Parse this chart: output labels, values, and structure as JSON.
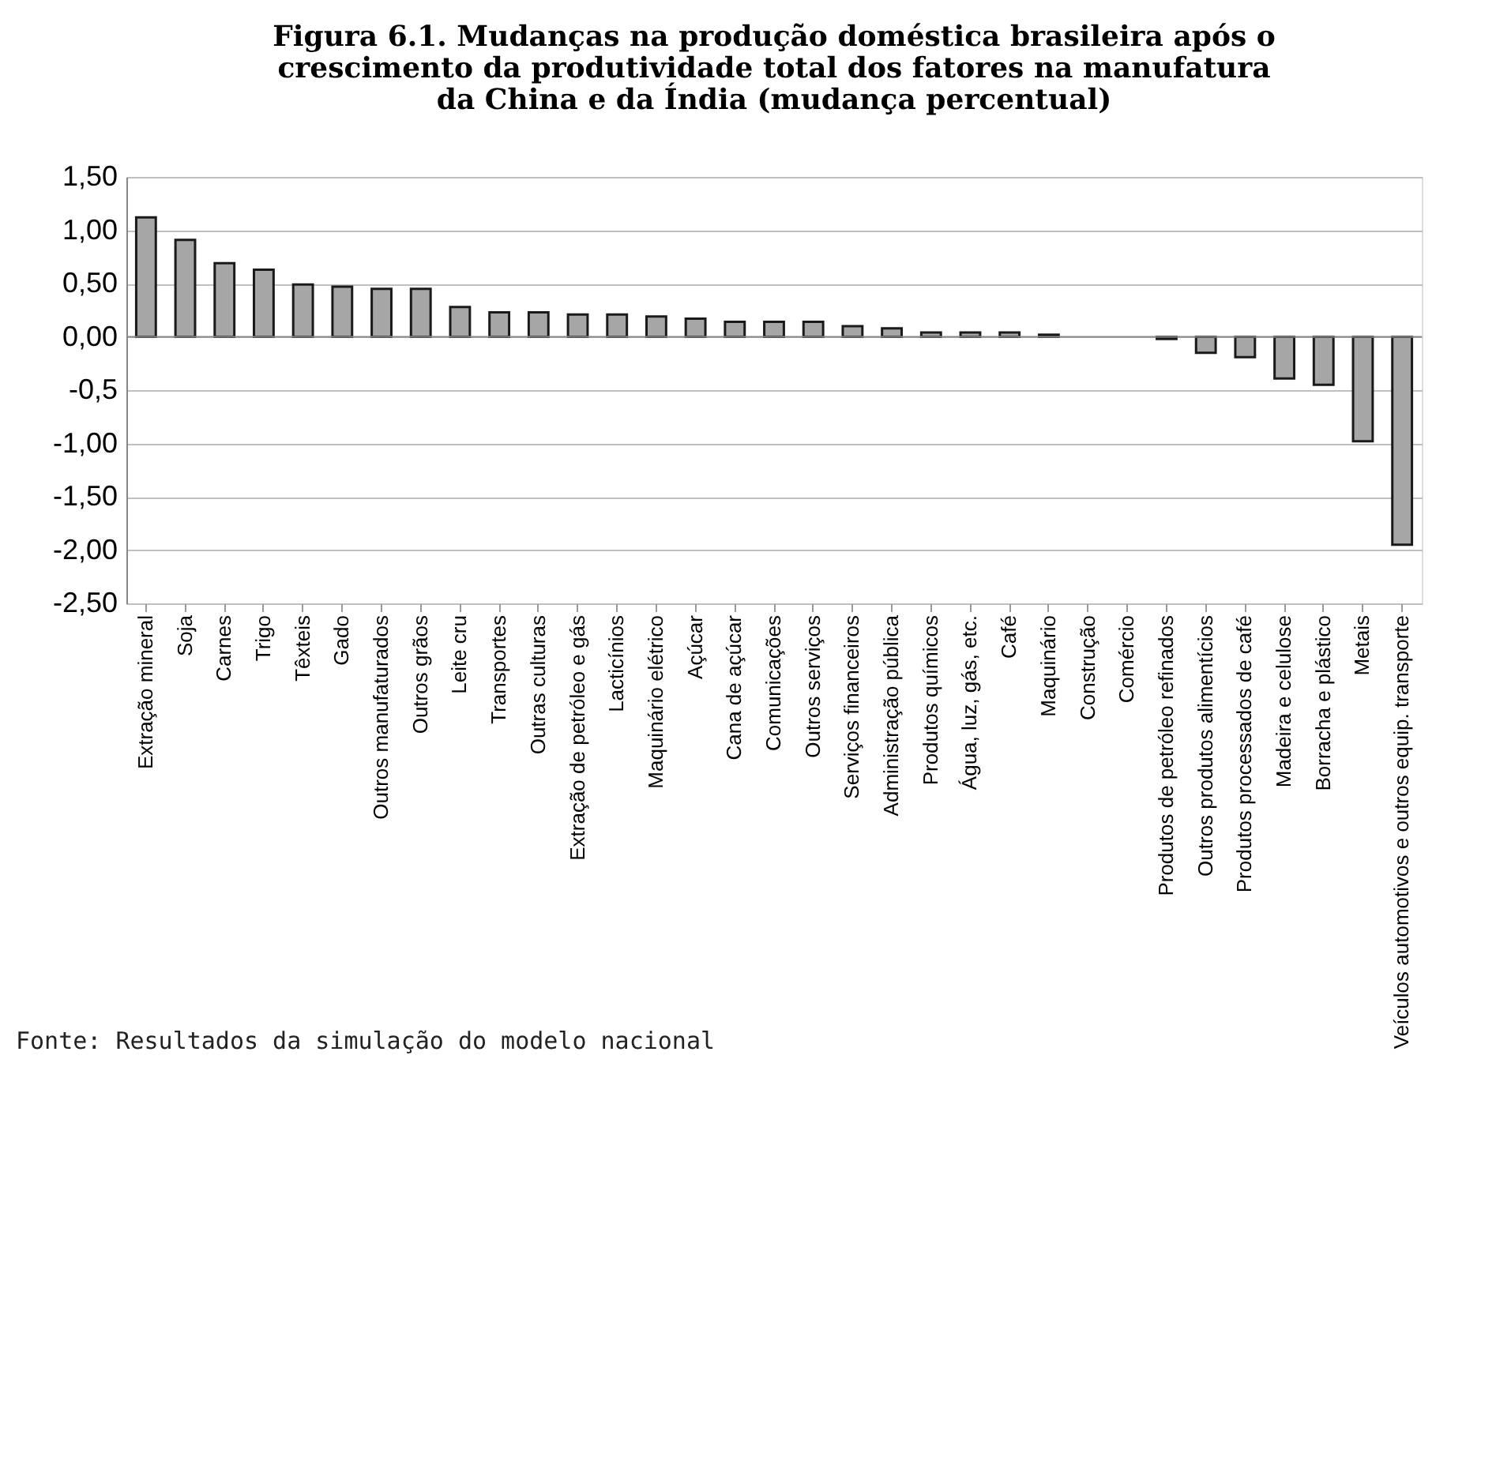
{
  "chart_data": {
    "type": "bar",
    "title": "Figura 6.1. Mudanças na produção doméstica brasileira após o crescimento da produtividade total dos fatores na manufatura da China e da Índia (mudança percentual)",
    "categories": [
      "Extração mineral",
      "Soja",
      "Carnes",
      "Trigo",
      "Têxteis",
      "Gado",
      "Outros manufaturados",
      "Outros grãos",
      "Leite cru",
      "Transportes",
      "Outras culturas",
      "Extração de petróleo e gás",
      "Lacticínios",
      "Maquinário elétrico",
      "Açúcar",
      "Cana de açúcar",
      "Comunicações",
      "Outros serviços",
      "Serviços financeiros",
      "Administração pública",
      "Produtos químicos",
      "Água, luz, gás, etc.",
      "Café",
      "Maquinário",
      "Construção",
      "Comércio",
      "Produtos de petróleo refinados",
      "Outros produtos alimentícios",
      "Produtos processados de café",
      "Madeira e celulose",
      "Borracha e plástico",
      "Metais",
      "Veículos automotivos e outros equip. transporte"
    ],
    "values": [
      1.12,
      0.91,
      0.69,
      0.63,
      0.49,
      0.47,
      0.45,
      0.45,
      0.28,
      0.23,
      0.23,
      0.21,
      0.21,
      0.19,
      0.17,
      0.14,
      0.14,
      0.14,
      0.1,
      0.08,
      0.04,
      0.04,
      0.04,
      0.02,
      0,
      0,
      -0.02,
      -0.15,
      -0.19,
      -0.39,
      -0.45,
      -0.98,
      -1.95
    ],
    "color": "#a6a6a6",
    "ylim": [
      -2.5,
      1.5
    ],
    "yticks": [
      {
        "value": 1.5,
        "label": "1,50"
      },
      {
        "value": 1,
        "label": "1,00"
      },
      {
        "value": 0.5,
        "label": "0,50"
      },
      {
        "value": 0,
        "label": "0,00"
      },
      {
        "value": -0.5,
        "label": "-0,5"
      },
      {
        "value": -1,
        "label": "-1,00"
      },
      {
        "value": -1.5,
        "label": "-1,50"
      },
      {
        "value": -2,
        "label": "-2,00"
      },
      {
        "value": -2.5,
        "label": "-2,50"
      }
    ],
    "grid": "y",
    "annotations": [
      "Fonte: Resultados da simulação do modelo nacional"
    ]
  }
}
